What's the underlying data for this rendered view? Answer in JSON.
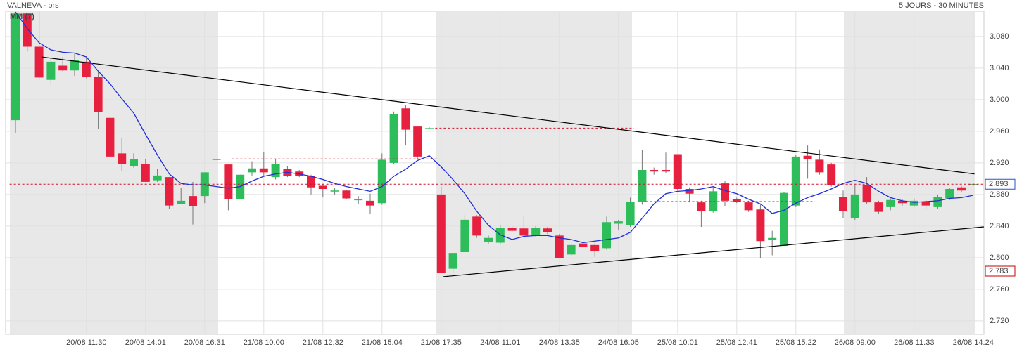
{
  "chart_data": {
    "type": "candlestick",
    "title": "VALNEVA - brs",
    "subtitle": "5 JOURS - 30 MINUTES",
    "ylim": [
      2.703,
      3.111
    ],
    "yticks": [
      {
        "value": 2.72,
        "label": "2.720"
      },
      {
        "value": 2.76,
        "label": "2.760"
      },
      {
        "value": 2.8,
        "label": "2.800"
      },
      {
        "value": 2.84,
        "label": "2.840"
      },
      {
        "value": 2.88,
        "label": "2.880"
      },
      {
        "value": 2.92,
        "label": "2.920"
      },
      {
        "value": 2.96,
        "label": "2.960"
      },
      {
        "value": 3.0,
        "label": "3.000"
      },
      {
        "value": 3.04,
        "label": "3.040"
      },
      {
        "value": 3.08,
        "label": "3.080"
      }
    ],
    "grid": true,
    "up_color": "#2dbd5a",
    "down_color": "#e8203f",
    "categories": [
      null,
      null,
      null,
      null,
      null,
      null,
      "20/08 11:30",
      null,
      null,
      null,
      null,
      "20/08 14:01",
      null,
      null,
      null,
      null,
      "20/08 16:31",
      null,
      null,
      null,
      null,
      "21/08 10:00",
      null,
      null,
      null,
      null,
      "21/08 12:32",
      null,
      null,
      null,
      null,
      "21/08 15:04",
      null,
      null,
      null,
      null,
      "21/08 17:35",
      null,
      null,
      null,
      null,
      "24/08 11:01",
      null,
      null,
      null,
      null,
      "24/08 13:35",
      null,
      null,
      null,
      null,
      "24/08 16:05",
      null,
      null,
      null,
      null,
      "25/08 10:01",
      null,
      null,
      null,
      null,
      "25/08 12:41",
      null,
      null,
      null,
      null,
      "25/08 15:22",
      null,
      null,
      null,
      null,
      "26/08 09:00",
      null,
      null,
      null,
      null,
      "26/08 11:33",
      null,
      null,
      null,
      null,
      "26/08 14:24"
    ],
    "open": [
      2.974,
      3.109,
      3.067,
      3.025,
      3.043,
      3.037,
      3.048,
      3.029,
      2.977,
      2.932,
      2.916,
      2.919,
      2.898,
      2.902,
      2.868,
      2.878,
      2.878,
      2.924,
      2.918,
      2.874,
      2.908,
      2.913,
      2.902,
      2.912,
      2.909,
      2.903,
      2.891,
      2.884,
      2.885,
      2.874,
      2.872,
      2.869,
      2.92,
      2.989,
      2.966,
      2.964,
      2.88,
      2.786,
      2.807,
      2.852,
      2.82,
      2.819,
      2.838,
      2.837,
      2.828,
      2.837,
      2.828,
      2.804,
      2.818,
      2.816,
      2.812,
      2.843,
      2.841,
      2.871,
      2.911,
      2.911,
      2.931,
      2.887,
      2.87,
      2.859,
      2.894,
      2.874,
      2.87,
      2.861,
      2.823,
      2.815,
      2.866,
      2.929,
      2.924,
      2.918,
      2.877,
      2.85,
      2.892,
      2.87,
      2.864,
      2.872,
      2.866,
      2.871,
      2.864,
      2.875,
      2.889,
      2.892
    ],
    "high": [
      3.11,
      3.109,
      3.112,
      3.054,
      3.054,
      3.058,
      3.055,
      3.036,
      2.979,
      2.952,
      2.932,
      2.925,
      2.912,
      2.902,
      2.888,
      2.896,
      2.908,
      2.925,
      2.918,
      2.905,
      2.922,
      2.934,
      2.925,
      2.916,
      2.911,
      2.905,
      2.893,
      2.888,
      2.886,
      2.878,
      2.881,
      2.932,
      2.985,
      2.993,
      2.966,
      2.965,
      2.89,
      2.806,
      2.854,
      2.854,
      2.828,
      2.841,
      2.84,
      2.852,
      2.84,
      2.839,
      2.83,
      2.818,
      2.82,
      2.818,
      2.852,
      2.848,
      2.876,
      2.936,
      2.914,
      2.933,
      2.931,
      2.889,
      2.872,
      2.89,
      2.897,
      2.876,
      2.872,
      2.867,
      2.834,
      2.883,
      2.93,
      2.942,
      2.937,
      2.92,
      2.885,
      2.892,
      2.902,
      2.872,
      2.875,
      2.874,
      2.875,
      2.873,
      2.88,
      2.888,
      2.891,
      2.894
    ],
    "low": [
      2.958,
      3.061,
      3.025,
      3.02,
      3.036,
      3.03,
      3.027,
      2.963,
      2.928,
      2.91,
      2.914,
      2.896,
      2.896,
      2.862,
      2.868,
      2.842,
      2.869,
      2.924,
      2.86,
      2.874,
      2.904,
      2.903,
      2.899,
      2.902,
      2.902,
      2.88,
      2.877,
      2.88,
      2.874,
      2.868,
      2.855,
      2.867,
      2.918,
      2.942,
      2.925,
      2.964,
      2.781,
      2.781,
      2.807,
      2.825,
      2.818,
      2.817,
      2.832,
      2.826,
      2.826,
      2.83,
      2.799,
      2.802,
      2.812,
      2.801,
      2.81,
      2.835,
      2.839,
      2.867,
      2.905,
      2.907,
      2.885,
      2.87,
      2.839,
      2.857,
      2.865,
      2.869,
      2.858,
      2.799,
      2.803,
      2.815,
      2.864,
      2.9,
      2.905,
      2.89,
      2.85,
      2.848,
      2.868,
      2.856,
      2.86,
      2.866,
      2.864,
      2.861,
      2.862,
      2.873,
      2.883,
      2.891
    ],
    "close": [
      3.109,
      3.067,
      3.028,
      3.048,
      3.037,
      3.05,
      3.029,
      2.984,
      2.928,
      2.919,
      2.925,
      2.896,
      2.904,
      2.866,
      2.872,
      2.865,
      2.908,
      2.925,
      2.874,
      2.905,
      2.913,
      2.908,
      2.919,
      2.903,
      2.903,
      2.889,
      2.887,
      2.885,
      2.875,
      2.874,
      2.866,
      2.924,
      2.982,
      2.962,
      2.928,
      2.964,
      2.781,
      2.806,
      2.848,
      2.828,
      2.825,
      2.838,
      2.834,
      2.828,
      2.838,
      2.832,
      2.799,
      2.816,
      2.814,
      2.808,
      2.845,
      2.846,
      2.871,
      2.911,
      2.909,
      2.909,
      2.887,
      2.881,
      2.859,
      2.884,
      2.872,
      2.871,
      2.86,
      2.821,
      2.825,
      2.882,
      2.928,
      2.925,
      2.908,
      2.892,
      2.859,
      2.88,
      2.87,
      2.858,
      2.873,
      2.869,
      2.872,
      2.866,
      2.877,
      2.887,
      2.885,
      2.893
    ],
    "moving_average": {
      "name": "MM (7)",
      "color": "#1f2fd6",
      "values": [
        3.111,
        3.09,
        3.072,
        3.063,
        3.06,
        3.059,
        3.054,
        3.036,
        3.02,
        3.001,
        2.983,
        2.956,
        2.93,
        2.906,
        2.894,
        2.892,
        2.892,
        2.89,
        2.888,
        2.89,
        2.897,
        2.903,
        2.906,
        2.908,
        2.906,
        2.903,
        2.899,
        2.894,
        2.89,
        2.887,
        2.884,
        2.89,
        2.903,
        2.912,
        2.923,
        2.929,
        2.915,
        2.899,
        2.881,
        2.859,
        2.841,
        2.829,
        2.823,
        2.827,
        2.828,
        2.828,
        2.825,
        2.823,
        2.819,
        2.821,
        2.823,
        2.825,
        2.832,
        2.85,
        2.868,
        2.881,
        2.884,
        2.885,
        2.887,
        2.89,
        2.885,
        2.881,
        2.874,
        2.868,
        2.856,
        2.86,
        2.869,
        2.876,
        2.881,
        2.887,
        2.894,
        2.898,
        2.894,
        2.884,
        2.876,
        2.872,
        2.87,
        2.871,
        2.872,
        2.875,
        2.876,
        2.879
      ]
    },
    "levels": [
      {
        "value": 2.893,
        "from": -0.5,
        "to": 82
      },
      {
        "value": 2.925,
        "from": 18.3,
        "to": 35.8
      },
      {
        "value": 2.964,
        "from": 35.5,
        "to": 52.3
      },
      {
        "value": 2.871,
        "from": 53.3,
        "to": 67.6
      }
    ],
    "trendlines": [
      {
        "from": [
          2.2,
          3.054
        ],
        "to": [
          81.1,
          2.906
        ]
      },
      {
        "from": [
          36.2,
          2.776
        ],
        "to": [
          81.9,
          2.839
        ]
      }
    ],
    "price_markers": [
      {
        "value": 2.893,
        "color": "#2255cc"
      },
      {
        "value": 2.783,
        "color": "#cc0000"
      }
    ]
  }
}
